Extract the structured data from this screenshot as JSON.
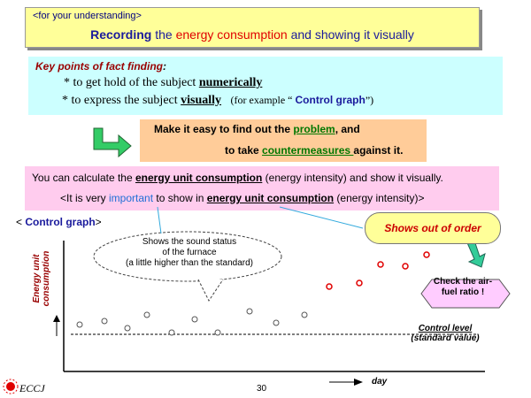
{
  "title": {
    "small": "<for your understanding>",
    "main_part1": "Recording",
    "main_part2": " the ",
    "main_part3": "energy consumption",
    "main_part4": " and showing it visually"
  },
  "key_points": {
    "heading": "Key points of fact finding",
    "heading_colon": ":",
    "p1_prefix": "* to get hold of the subject ",
    "p1_emph": "numerically",
    "p2_prefix": "* to express the subject ",
    "p2_emph": "visually",
    "p2_example_prefix": "(for example “ ",
    "p2_example_emph": "Control graph",
    "p2_example_suffix": "”)"
  },
  "make_box": {
    "line1_prefix": "Make it easy to find out the ",
    "line1_emph": "problem",
    "line1_suffix": ", and",
    "line2_prefix": "to take ",
    "line2_emph": "countermeasures ",
    "line2_suffix": "against it."
  },
  "calc_box": {
    "line1_prefix": "You can calculate the ",
    "line1_emph": "energy unit consumption",
    "line1_suffix": " (energy intensity) and show it visually.",
    "line2_prefix": "<It is very ",
    "line2_important": "important",
    "line2_mid": " to show in ",
    "line2_emph": "energy unit consumption",
    "line2_suffix": " (energy intensity)>"
  },
  "control_graph": {
    "label_prefix": "< ",
    "label": "Control graph",
    "label_suffix": ">",
    "ylabel_line1": "Energy unit",
    "ylabel_line2": "consumption",
    "xlabel": "day",
    "callout_sound_l1": "Shows the sound status",
    "callout_sound_l2": "of the furnace",
    "callout_sound_l3": "(a little higher than the standard)",
    "callout_out_of_order": "Shows out of order",
    "check_l1": "Check the air-",
    "check_l2": "fuel ratio !",
    "control_level_l1": "Control level",
    "control_level_l2": "(standard value)"
  },
  "footer": {
    "logo": "ECCJ",
    "page_number": "30"
  },
  "colors": {
    "title_bg": "#ffff99",
    "key_bg": "#ccffff",
    "make_bg": "#ffcc99",
    "calc_bg": "#ffccee",
    "normal_point": "#555555",
    "abnormal_point": "#e00000"
  }
}
